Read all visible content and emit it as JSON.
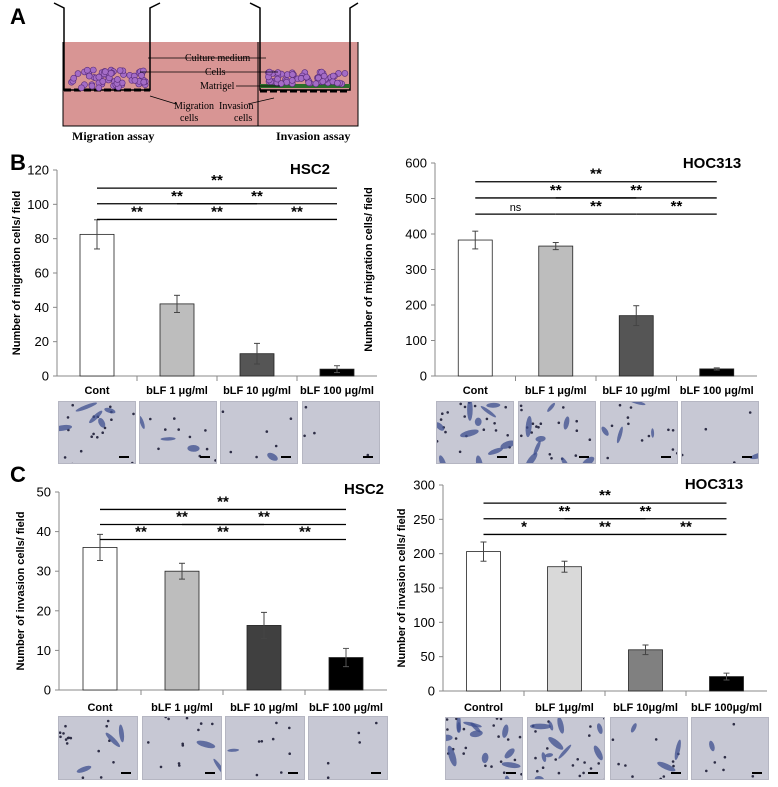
{
  "panels": [
    "A",
    "B",
    "C"
  ],
  "diagram": {
    "labels": [
      "Culture medium",
      "Cells",
      "Matrigel",
      "Migration",
      "Invasion",
      "cells",
      "cells"
    ],
    "captions": [
      "Migration assay",
      "Invasion assay"
    ],
    "colors": {
      "medium": "#d89594",
      "cells": "#a46cc6",
      "membrane": "#000000"
    }
  },
  "chart_data": [
    {
      "id": "b-hsc2",
      "type": "bar",
      "title": "HSC2",
      "ylabel": "Number of migration cells/ field",
      "xlabel": "",
      "categories": [
        "Cont",
        "bLF 1 μg/ml",
        "bLF 10 μg/ml",
        "bLF 100 μg/ml"
      ],
      "values": [
        82.5,
        42,
        13,
        4
      ],
      "errors": [
        8.5,
        5,
        6,
        2
      ],
      "colors": [
        "#ffffff",
        "#bdbdbd",
        "#555555",
        "#000000"
      ],
      "ylim": [
        0,
        120
      ],
      "yticks": [
        0,
        20,
        40,
        60,
        80,
        100,
        120
      ],
      "grid": false,
      "brackets": [
        {
          "from": 0,
          "to": 1,
          "text": "**",
          "level": 0
        },
        {
          "from": 1,
          "to": 2,
          "text": "**",
          "level": 0
        },
        {
          "from": 2,
          "to": 3,
          "text": "**",
          "level": 0
        },
        {
          "from": 0,
          "to": 2,
          "text": "**",
          "level": 1
        },
        {
          "from": 1,
          "to": 3,
          "text": "**",
          "level": 1
        },
        {
          "from": 0,
          "to": 3,
          "text": "**",
          "level": 2
        }
      ]
    },
    {
      "id": "b-hoc313",
      "type": "bar",
      "title": "HOC313",
      "ylabel": "Number of migration cells/ field",
      "xlabel": "",
      "categories": [
        "Cont",
        "bLF 1 μg/ml",
        "bLF 10 μg/ml",
        "bLF 100 μg/ml"
      ],
      "values": [
        383,
        366,
        170,
        20
      ],
      "errors": [
        25,
        10,
        28,
        3
      ],
      "colors": [
        "#ffffff",
        "#bdbdbd",
        "#555555",
        "#000000"
      ],
      "ylim": [
        0,
        600
      ],
      "yticks": [
        0,
        100,
        200,
        300,
        400,
        500,
        600
      ],
      "grid": false,
      "brackets": [
        {
          "from": 0,
          "to": 1,
          "text": "ns",
          "level": 0
        },
        {
          "from": 1,
          "to": 2,
          "text": "**",
          "level": 0
        },
        {
          "from": 2,
          "to": 3,
          "text": "**",
          "level": 0
        },
        {
          "from": 0,
          "to": 2,
          "text": "**",
          "level": 1
        },
        {
          "from": 1,
          "to": 3,
          "text": "**",
          "level": 1
        },
        {
          "from": 0,
          "to": 3,
          "text": "**",
          "level": 2
        }
      ]
    },
    {
      "id": "c-hsc2",
      "type": "bar",
      "title": "HSC2",
      "ylabel": "Number of invasion cells/ field",
      "xlabel": "",
      "categories": [
        "Cont",
        "bLF 1 μg/ml",
        "bLF 10 μg/ml",
        "bLF 100 μg/ml"
      ],
      "values": [
        36,
        30,
        16.3,
        8.2
      ],
      "errors": [
        3.3,
        2,
        3.3,
        2.3
      ],
      "colors": [
        "#ffffff",
        "#bdbdbd",
        "#404040",
        "#000000"
      ],
      "ylim": [
        0,
        50
      ],
      "yticks": [
        0,
        10,
        20,
        30,
        40,
        50
      ],
      "grid": false,
      "brackets": [
        {
          "from": 0,
          "to": 1,
          "text": "**",
          "level": 0
        },
        {
          "from": 1,
          "to": 2,
          "text": "**",
          "level": 0
        },
        {
          "from": 2,
          "to": 3,
          "text": "**",
          "level": 0
        },
        {
          "from": 0,
          "to": 2,
          "text": "**",
          "level": 1
        },
        {
          "from": 1,
          "to": 3,
          "text": "**",
          "level": 1
        },
        {
          "from": 0,
          "to": 3,
          "text": "**",
          "level": 2
        }
      ]
    },
    {
      "id": "c-hoc313",
      "type": "bar",
      "title": "HOC313",
      "ylabel": "Number of invasion cells/ field",
      "xlabel": "",
      "categories": [
        "Control",
        "bLF 1μg/ml",
        "bLF 10μg/ml",
        "bLF 100μg/ml"
      ],
      "values": [
        203,
        181,
        60,
        21
      ],
      "errors": [
        14,
        8,
        7,
        5
      ],
      "colors": [
        "#ffffff",
        "#d9d9d9",
        "#808080",
        "#000000"
      ],
      "ylim": [
        0,
        300
      ],
      "yticks": [
        0,
        50,
        100,
        150,
        200,
        250,
        300
      ],
      "grid": false,
      "brackets": [
        {
          "from": 0,
          "to": 1,
          "text": "*",
          "level": 0
        },
        {
          "from": 1,
          "to": 2,
          "text": "**",
          "level": 0
        },
        {
          "from": 2,
          "to": 3,
          "text": "**",
          "level": 0
        },
        {
          "from": 0,
          "to": 2,
          "text": "**",
          "level": 1
        },
        {
          "from": 1,
          "to": 3,
          "text": "**",
          "level": 1
        },
        {
          "from": 0,
          "to": 3,
          "text": "**",
          "level": 2
        }
      ]
    }
  ]
}
